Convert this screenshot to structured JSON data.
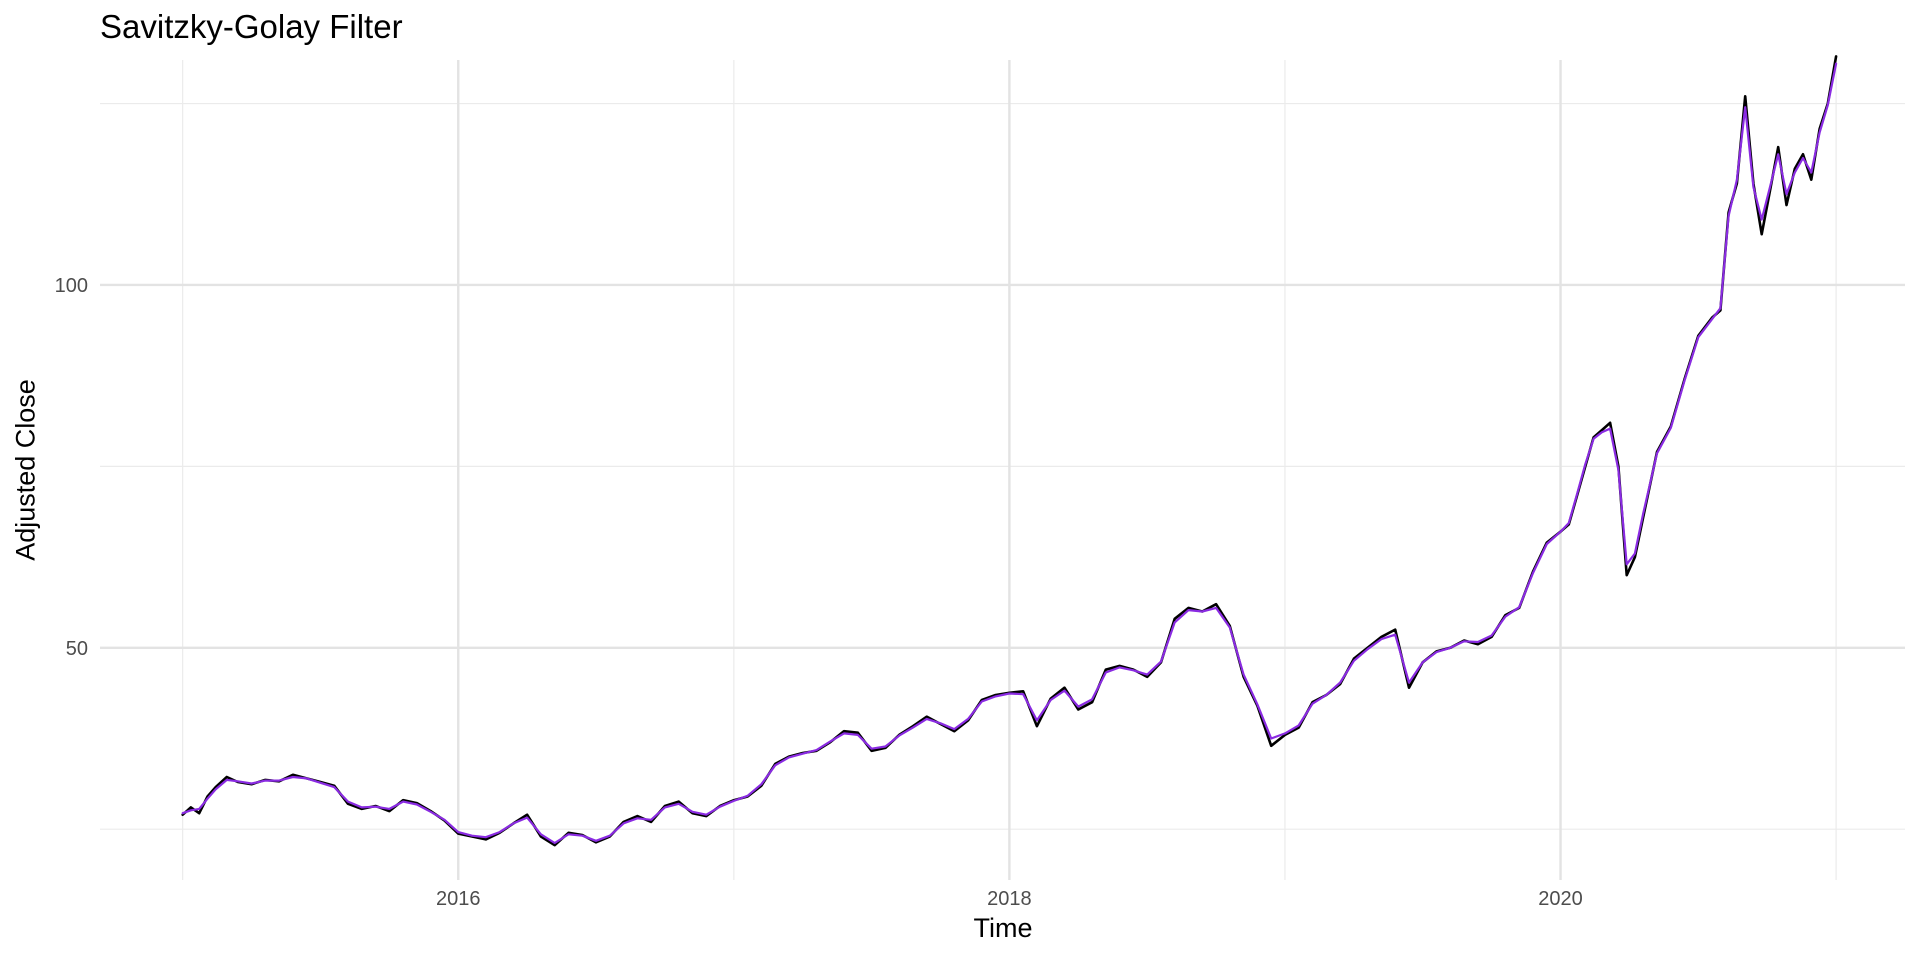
{
  "chart_data": {
    "type": "line",
    "title": "Savitzky-Golay Filter",
    "xlabel": "Time",
    "ylabel": "Adjusted Close",
    "xlim": [
      2014.7,
      2021.25
    ],
    "ylim": [
      18,
      131
    ],
    "x_major_ticks": [
      2016,
      2018,
      2020
    ],
    "x_minor_ticks": [
      2015,
      2017,
      2019,
      2021
    ],
    "x_tick_labels": [
      "2016",
      "2018",
      "2020"
    ],
    "y_major_ticks": [
      50,
      100
    ],
    "y_minor_ticks": [
      25,
      75,
      125
    ],
    "y_tick_labels": [
      "50",
      "100"
    ],
    "grid": true,
    "legend": "none",
    "series": [
      {
        "color": "#000000",
        "x": [
          2015.0,
          2015.03,
          2015.06,
          2015.09,
          2015.12,
          2015.16,
          2015.2,
          2015.25,
          2015.3,
          2015.35,
          2015.4,
          2015.45,
          2015.5,
          2015.55,
          2015.6,
          2015.65,
          2015.7,
          2015.75,
          2015.8,
          2015.85,
          2015.9,
          2015.95,
          2016.0,
          2016.05,
          2016.1,
          2016.15,
          2016.2,
          2016.25,
          2016.3,
          2016.35,
          2016.4,
          2016.45,
          2016.5,
          2016.55,
          2016.6,
          2016.65,
          2016.7,
          2016.75,
          2016.8,
          2016.85,
          2016.9,
          2016.95,
          2017.0,
          2017.05,
          2017.1,
          2017.15,
          2017.2,
          2017.25,
          2017.3,
          2017.35,
          2017.4,
          2017.45,
          2017.5,
          2017.55,
          2017.6,
          2017.65,
          2017.7,
          2017.75,
          2017.8,
          2017.85,
          2017.9,
          2017.95,
          2018.0,
          2018.05,
          2018.1,
          2018.15,
          2018.2,
          2018.25,
          2018.3,
          2018.35,
          2018.4,
          2018.45,
          2018.5,
          2018.55,
          2018.6,
          2018.65,
          2018.7,
          2018.75,
          2018.8,
          2018.85,
          2018.9,
          2018.95,
          2019.0,
          2019.05,
          2019.1,
          2019.15,
          2019.2,
          2019.25,
          2019.3,
          2019.35,
          2019.4,
          2019.45,
          2019.5,
          2019.55,
          2019.6,
          2019.65,
          2019.7,
          2019.75,
          2019.8,
          2019.85,
          2019.9,
          2019.95,
          2020.0,
          2020.03,
          2020.06,
          2020.09,
          2020.12,
          2020.15,
          2020.18,
          2020.21,
          2020.24,
          2020.27,
          2020.3,
          2020.35,
          2020.4,
          2020.45,
          2020.5,
          2020.55,
          2020.58,
          2020.61,
          2020.64,
          2020.67,
          2020.7,
          2020.73,
          2020.76,
          2020.79,
          2020.82,
          2020.85,
          2020.88,
          2020.91,
          2020.94,
          2020.97,
          2021.0
        ],
        "y": [
          27.0,
          28.0,
          27.2,
          29.5,
          30.8,
          32.2,
          31.5,
          31.2,
          31.8,
          31.6,
          32.5,
          32.0,
          31.5,
          31.0,
          28.5,
          27.8,
          28.2,
          27.5,
          29.0,
          28.6,
          27.5,
          26.2,
          24.4,
          24.0,
          23.6,
          24.5,
          25.8,
          27.0,
          24.0,
          22.8,
          24.5,
          24.2,
          23.2,
          24.0,
          26.0,
          26.8,
          26.0,
          28.2,
          28.8,
          27.2,
          26.8,
          28.2,
          29.0,
          29.5,
          31.0,
          34.0,
          35.0,
          35.5,
          35.8,
          37.0,
          38.5,
          38.3,
          35.8,
          36.2,
          38.0,
          39.2,
          40.5,
          39.5,
          38.5,
          40.0,
          42.8,
          43.5,
          43.8,
          44.0,
          39.2,
          43.0,
          44.5,
          41.5,
          42.5,
          47.0,
          47.5,
          47.0,
          46.0,
          48.0,
          54.0,
          55.5,
          55.0,
          56.0,
          53.0,
          46.0,
          42.0,
          36.5,
          38.0,
          39.0,
          42.5,
          43.5,
          45.0,
          48.5,
          50.0,
          51.5,
          52.5,
          44.5,
          48.0,
          49.5,
          50.0,
          51.0,
          50.5,
          51.5,
          54.5,
          55.5,
          60.5,
          64.5,
          66.0,
          67.0,
          71.0,
          75.0,
          79.0,
          80.0,
          81.0,
          75.0,
          60.0,
          62.5,
          68.0,
          77.0,
          80.5,
          87.0,
          93.0,
          95.5,
          96.5,
          110.0,
          114.0,
          126.0,
          114.0,
          107.0,
          113.0,
          119.0,
          111.0,
          116.0,
          118.0,
          114.5,
          121.5,
          125.0,
          131.5
        ]
      },
      {
        "color": "#8a2be2",
        "x": [
          2015.0,
          2015.03,
          2015.06,
          2015.09,
          2015.12,
          2015.16,
          2015.2,
          2015.25,
          2015.3,
          2015.35,
          2015.4,
          2015.45,
          2015.5,
          2015.55,
          2015.6,
          2015.65,
          2015.7,
          2015.75,
          2015.8,
          2015.85,
          2015.9,
          2015.95,
          2016.0,
          2016.05,
          2016.1,
          2016.15,
          2016.2,
          2016.25,
          2016.3,
          2016.35,
          2016.4,
          2016.45,
          2016.5,
          2016.55,
          2016.6,
          2016.65,
          2016.7,
          2016.75,
          2016.8,
          2016.85,
          2016.9,
          2016.95,
          2017.0,
          2017.05,
          2017.1,
          2017.15,
          2017.2,
          2017.25,
          2017.3,
          2017.35,
          2017.4,
          2017.45,
          2017.5,
          2017.55,
          2017.6,
          2017.65,
          2017.7,
          2017.75,
          2017.8,
          2017.85,
          2017.9,
          2017.95,
          2018.0,
          2018.05,
          2018.1,
          2018.15,
          2018.2,
          2018.25,
          2018.3,
          2018.35,
          2018.4,
          2018.45,
          2018.5,
          2018.55,
          2018.6,
          2018.65,
          2018.7,
          2018.75,
          2018.8,
          2018.85,
          2018.9,
          2018.95,
          2019.0,
          2019.05,
          2019.1,
          2019.15,
          2019.2,
          2019.25,
          2019.3,
          2019.35,
          2019.4,
          2019.45,
          2019.5,
          2019.55,
          2019.6,
          2019.65,
          2019.7,
          2019.75,
          2019.8,
          2019.85,
          2019.9,
          2019.95,
          2020.0,
          2020.03,
          2020.06,
          2020.09,
          2020.12,
          2020.15,
          2020.18,
          2020.21,
          2020.24,
          2020.27,
          2020.3,
          2020.35,
          2020.4,
          2020.45,
          2020.5,
          2020.55,
          2020.58,
          2020.61,
          2020.64,
          2020.67,
          2020.7,
          2020.73,
          2020.76,
          2020.79,
          2020.82,
          2020.85,
          2020.88,
          2020.91,
          2020.94,
          2020.97,
          2021.0
        ],
        "y": [
          27.2,
          27.6,
          27.8,
          29.2,
          30.5,
          31.8,
          31.6,
          31.3,
          31.7,
          31.7,
          32.2,
          32.0,
          31.4,
          30.8,
          28.8,
          28.0,
          28.1,
          27.8,
          28.8,
          28.4,
          27.4,
          26.3,
          24.6,
          24.1,
          23.9,
          24.6,
          25.8,
          26.6,
          24.3,
          23.1,
          24.3,
          24.1,
          23.4,
          24.1,
          25.8,
          26.5,
          26.3,
          28.0,
          28.5,
          27.4,
          27.0,
          28.1,
          28.9,
          29.6,
          31.2,
          33.8,
          34.9,
          35.4,
          35.9,
          37.1,
          38.2,
          38.0,
          36.1,
          36.4,
          37.9,
          39.0,
          40.2,
          39.6,
          38.8,
          40.2,
          42.6,
          43.3,
          43.7,
          43.6,
          40.0,
          42.8,
          44.1,
          41.9,
          42.9,
          46.6,
          47.3,
          46.9,
          46.3,
          48.1,
          53.5,
          55.2,
          55.0,
          55.5,
          52.8,
          46.3,
          42.2,
          37.5,
          38.2,
          39.3,
          42.3,
          43.5,
          45.2,
          48.2,
          49.8,
          51.2,
          51.8,
          45.2,
          48.0,
          49.4,
          50.0,
          50.9,
          50.8,
          51.7,
          54.3,
          55.6,
          60.3,
          64.3,
          66.0,
          67.2,
          71.2,
          75.3,
          78.8,
          79.7,
          80.2,
          74.5,
          61.5,
          63.0,
          68.5,
          76.8,
          80.3,
          86.8,
          92.8,
          95.3,
          96.8,
          109.5,
          114.5,
          124.5,
          113.5,
          109.0,
          113.5,
          118.0,
          112.5,
          115.5,
          117.5,
          115.5,
          121.0,
          124.8,
          130.5
        ]
      }
    ]
  }
}
